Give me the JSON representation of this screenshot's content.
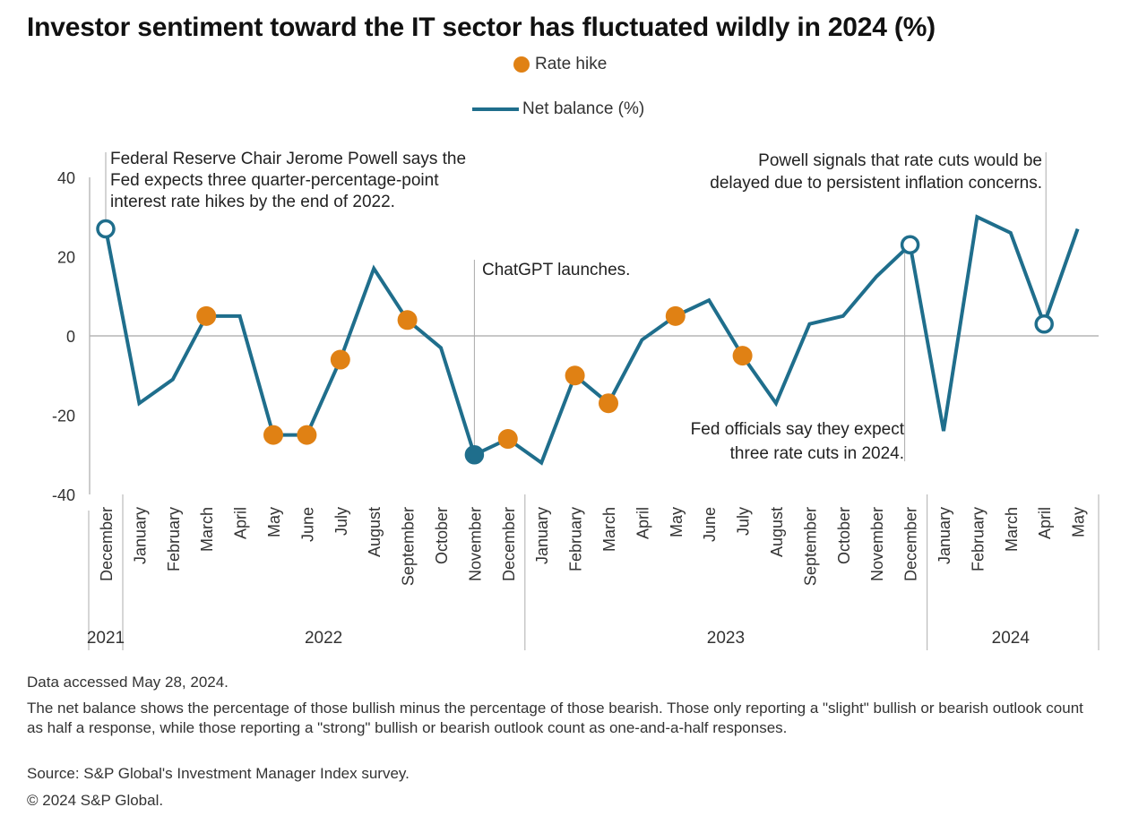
{
  "title": "Investor sentiment toward the IT sector has fluctuated wildly in 2024 (%)",
  "legend": {
    "rate_hike": "Rate hike",
    "net_balance": "Net balance (%)"
  },
  "colors": {
    "line": "#1f6e8c",
    "rate_hike": "#e08114",
    "axis": "#999999",
    "zero_line": "#b5b5b5"
  },
  "chart_data": {
    "type": "line",
    "title": "Investor sentiment toward the IT sector has fluctuated wildly in 2024 (%)",
    "ylim": [
      -40,
      40
    ],
    "yticks": [
      40,
      20,
      0,
      -20,
      -40
    ],
    "categories": [
      "December",
      "January",
      "February",
      "March",
      "April",
      "May",
      "June",
      "July",
      "August",
      "September",
      "October",
      "November",
      "December",
      "January",
      "February",
      "March",
      "April",
      "May",
      "June",
      "July",
      "August",
      "September",
      "October",
      "November",
      "December",
      "January",
      "February",
      "March",
      "April",
      "May"
    ],
    "years": [
      {
        "label": "2021",
        "start": 0,
        "end": 0
      },
      {
        "label": "2022",
        "start": 1,
        "end": 12
      },
      {
        "label": "2023",
        "start": 13,
        "end": 24
      },
      {
        "label": "2024",
        "start": 25,
        "end": 29
      }
    ],
    "series": [
      {
        "name": "Net balance (%)",
        "values": [
          27,
          -17,
          -11,
          5,
          5,
          -25,
          -25,
          -6,
          17,
          4,
          -3,
          -30,
          -26,
          -32,
          -10,
          -17,
          -1,
          5,
          9,
          -5,
          -17,
          3,
          5,
          15,
          23,
          -24,
          30,
          26,
          3,
          27
        ]
      }
    ],
    "rate_hikes": [
      3,
      5,
      6,
      7,
      9,
      12,
      14,
      15,
      17,
      19
    ],
    "event_markers": [
      0,
      11,
      24,
      28
    ],
    "annotations": [
      {
        "index": 0,
        "text": [
          "Federal Reserve Chair Jerome Powell says the",
          "Fed expects three quarter-percentage-point",
          "interest rate hikes by the end of 2022."
        ]
      },
      {
        "index": 11,
        "text": [
          "ChatGPT launches."
        ]
      },
      {
        "index": 24,
        "text": [
          "Fed officials say they expect",
          "three rate cuts in 2024."
        ]
      },
      {
        "index": 28,
        "text": [
          "Powell signals that rate cuts would be",
          "delayed due to persistent inflation concerns."
        ]
      }
    ]
  },
  "notes": {
    "accessed": "Data accessed May 28, 2024.",
    "method": "The net balance shows the percentage of those bullish minus the percentage of those bearish. Those only reporting a \"slight\" bullish or bearish outlook count as half a response, while those reporting a \"strong\" bullish or bearish outlook count as one-and-a-half responses.",
    "source": "Source: S&P Global's Investment Manager Index survey.",
    "copyright": "© 2024 S&P Global."
  }
}
